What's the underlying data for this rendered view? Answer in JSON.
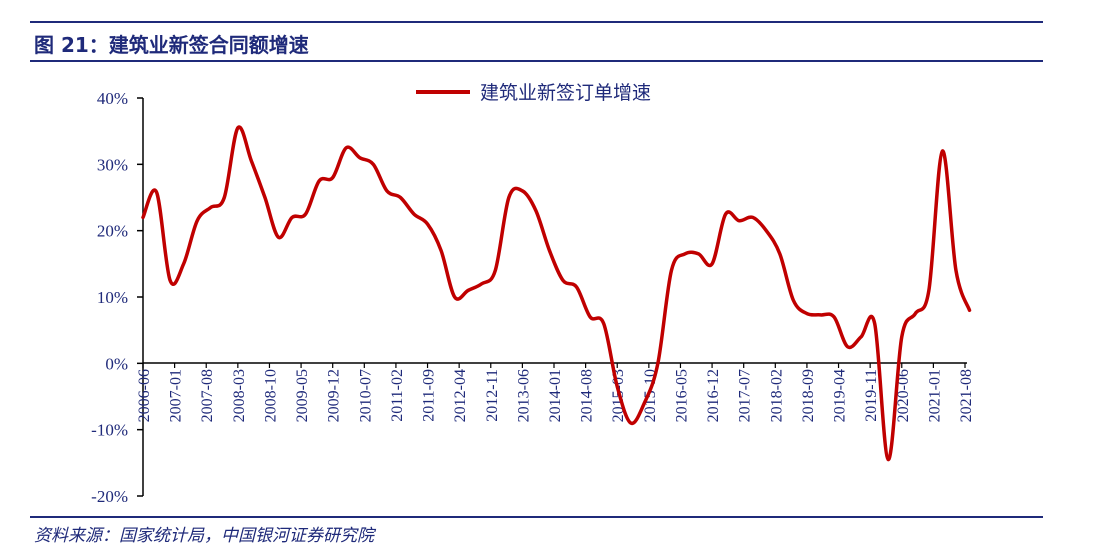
{
  "figure_title": "图 21：建筑业新签合同额增速",
  "source_note": "资料来源：国家统计局，中国银河证券研究院",
  "colors": {
    "series": "#c00000",
    "text": "#1f2a7a",
    "axis": "#000000"
  },
  "chart_data": {
    "type": "line",
    "title": "图 21：建筑业新签合同额增速",
    "legend_position": "top-center",
    "grid": false,
    "ylim": [
      -0.2,
      0.4
    ],
    "y_ticks": [
      "40%",
      "30%",
      "20%",
      "10%",
      "0%",
      "-10%",
      "-20%"
    ],
    "x_ticks": [
      "2006-06",
      "2007-01",
      "2007-08",
      "2008-03",
      "2008-10",
      "2009-05",
      "2009-12",
      "2010-07",
      "2011-02",
      "2011-09",
      "2012-04",
      "2012-11",
      "2013-06",
      "2014-01",
      "2014-08",
      "2015-03",
      "2015-10",
      "2016-05",
      "2016-12",
      "2017-07",
      "2018-02",
      "2018-09",
      "2019-04",
      "2019-11",
      "2020-06",
      "2021-01",
      "2021-08"
    ],
    "series": [
      {
        "name": "建筑业新签订单增速",
        "x": [
          "2006-06",
          "2006-09",
          "2006-12",
          "2007-03",
          "2007-06",
          "2007-09",
          "2007-12",
          "2008-03",
          "2008-06",
          "2008-09",
          "2008-12",
          "2009-03",
          "2009-06",
          "2009-09",
          "2009-12",
          "2010-03",
          "2010-06",
          "2010-09",
          "2010-12",
          "2011-03",
          "2011-06",
          "2011-09",
          "2011-12",
          "2012-03",
          "2012-06",
          "2012-09",
          "2012-12",
          "2013-03",
          "2013-06",
          "2013-09",
          "2013-12",
          "2014-03",
          "2014-06",
          "2014-09",
          "2014-12",
          "2015-03",
          "2015-06",
          "2015-09",
          "2015-12",
          "2016-03",
          "2016-06",
          "2016-09",
          "2016-12",
          "2017-03",
          "2017-06",
          "2017-09",
          "2017-12",
          "2018-03",
          "2018-06",
          "2018-09",
          "2018-12",
          "2019-03",
          "2019-06",
          "2019-09",
          "2019-12",
          "2020-03",
          "2020-06",
          "2020-09",
          "2020-12",
          "2021-03",
          "2021-06",
          "2021-09"
        ],
        "values": [
          0.22,
          0.258,
          0.125,
          0.15,
          0.215,
          0.235,
          0.25,
          0.355,
          0.305,
          0.25,
          0.19,
          0.22,
          0.225,
          0.275,
          0.28,
          0.325,
          0.31,
          0.3,
          0.26,
          0.25,
          0.225,
          0.21,
          0.17,
          0.1,
          0.11,
          0.12,
          0.14,
          0.25,
          0.26,
          0.23,
          0.17,
          0.125,
          0.115,
          0.07,
          0.06,
          -0.035,
          -0.09,
          -0.06,
          0.0,
          0.14,
          0.165,
          0.165,
          0.15,
          0.225,
          0.215,
          0.22,
          0.2,
          0.165,
          0.095,
          0.075,
          0.073,
          0.07,
          0.025,
          0.04,
          0.06,
          -0.145,
          0.04,
          0.075,
          0.11,
          0.32,
          0.14,
          0.08
        ]
      }
    ]
  }
}
